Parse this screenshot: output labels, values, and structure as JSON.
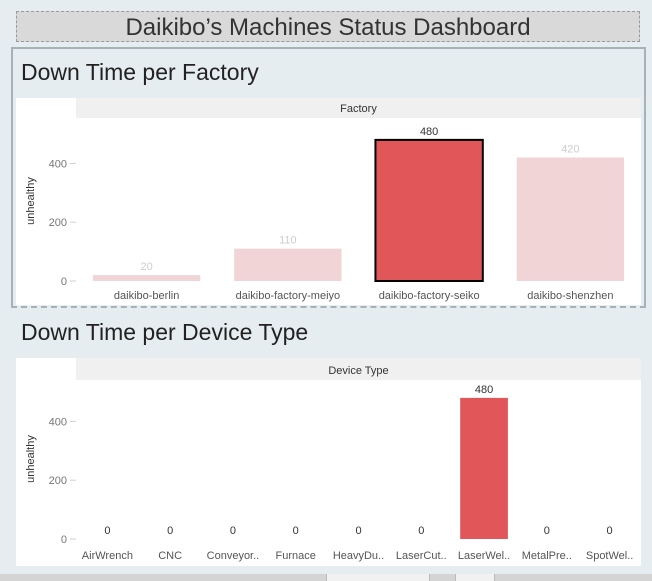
{
  "dashboard": {
    "title": "Daikibo’s Machines Status Dashboard"
  },
  "colors": {
    "highlight": "#e15759",
    "muted": "#f1d4d5",
    "label_muted": "#cccccc",
    "label_dark": "#333333"
  },
  "chart_data": [
    {
      "type": "bar",
      "title": "Down Time per Factory",
      "header": "Factory",
      "ylabel": "unhealthy",
      "ylim": [
        0,
        500
      ],
      "yticks": [
        0,
        200,
        400
      ],
      "categories": [
        "daikibo-berlin",
        "daikibo-factory-meiyo",
        "daikibo-factory-seiko",
        "daikibo-shenzhen"
      ],
      "values": [
        20,
        110,
        480,
        420
      ],
      "highlighted": "daikibo-factory-seiko"
    },
    {
      "type": "bar",
      "title": "Down Time per Device Type",
      "header": "Device Type",
      "ylabel": "unhealthy",
      "ylim": [
        0,
        500
      ],
      "yticks": [
        0,
        200,
        400
      ],
      "categories": [
        "AirWrench",
        "CNC",
        "Conveyor..",
        "Furnace",
        "HeavyDu..",
        "LaserCut..",
        "LaserWel..",
        "MetalPre..",
        "SpotWel.."
      ],
      "values": [
        0,
        0,
        0,
        0,
        0,
        0,
        480,
        0,
        0
      ],
      "highlighted": "LaserWel.."
    }
  ]
}
